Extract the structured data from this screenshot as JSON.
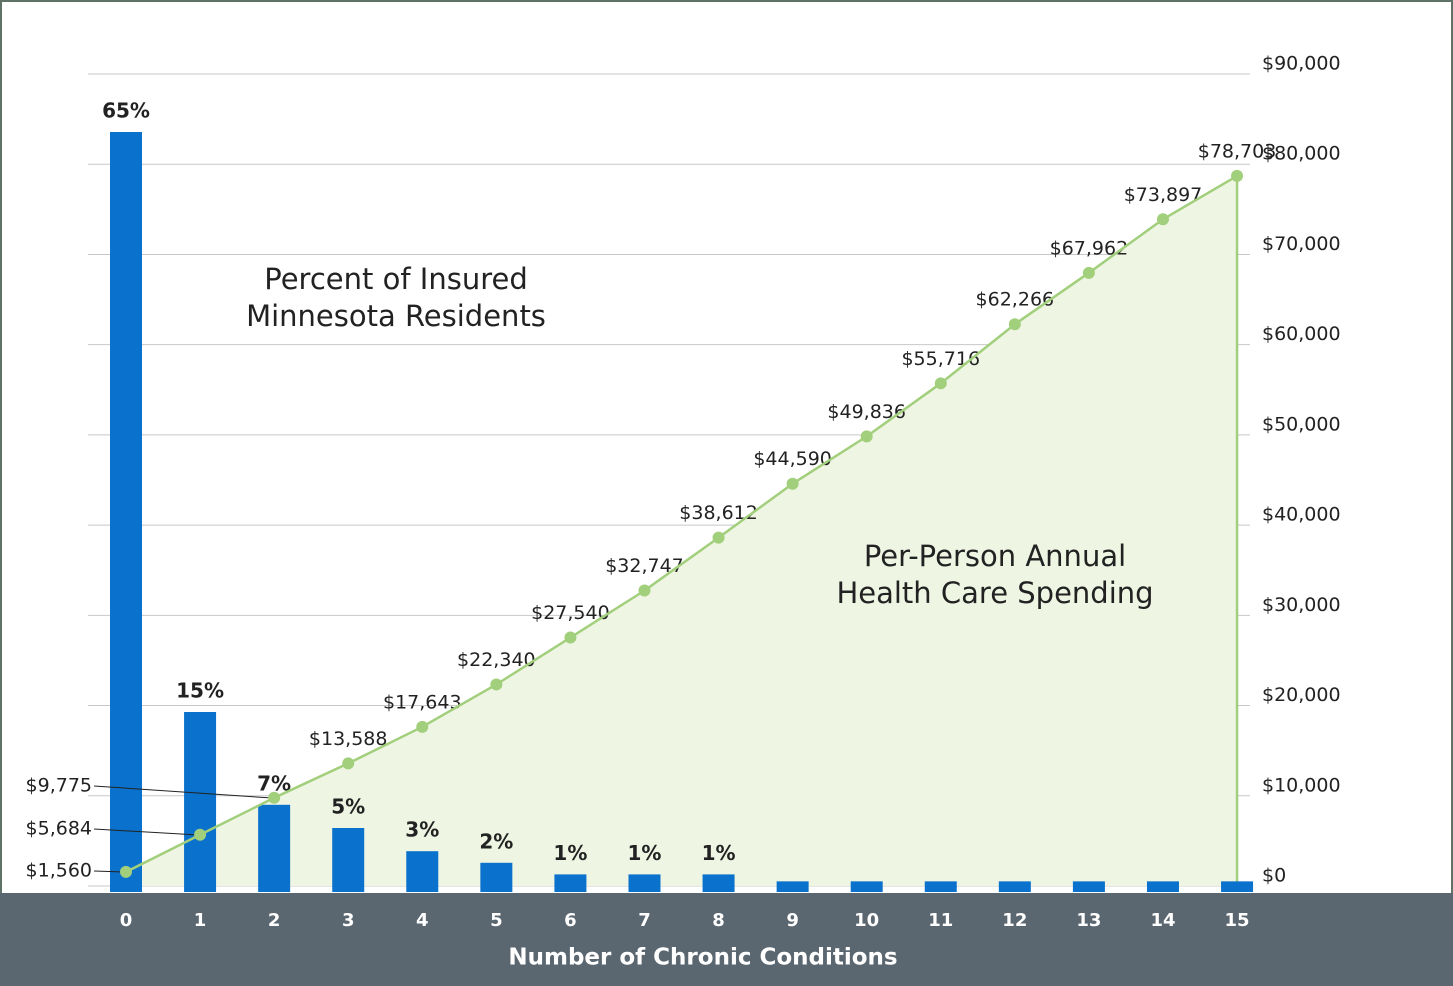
{
  "chart_data": {
    "type": "combo",
    "x_label": "Number of Chronic Conditions",
    "categories": [
      "0",
      "1",
      "2",
      "3",
      "4",
      "5",
      "6",
      "7",
      "8",
      "9",
      "10",
      "11",
      "12",
      "13",
      "14",
      "15"
    ],
    "ylim": [
      0,
      70
    ],
    "y2lim": [
      0,
      90000
    ],
    "y2ticks": [
      {
        "value": 0,
        "label": "$0"
      },
      {
        "value": 10000,
        "label": "$10,000"
      },
      {
        "value": 20000,
        "label": "$20,000"
      },
      {
        "value": 30000,
        "label": "$30,000"
      },
      {
        "value": 40000,
        "label": "$40,000"
      },
      {
        "value": 50000,
        "label": "$50,000"
      },
      {
        "value": 60000,
        "label": "$60,000"
      },
      {
        "value": 70000,
        "label": "$70,000"
      },
      {
        "value": 80000,
        "label": "$80,000"
      },
      {
        "value": 90000,
        "label": "$90,000"
      }
    ],
    "grid": true,
    "series": [
      {
        "name": [
          "Percent of Insured",
          "Minnesota Residents"
        ],
        "type": "bar",
        "color": "#0a72cc",
        "values": [
          65,
          15,
          7,
          5,
          3,
          2,
          1,
          1,
          1,
          0.4,
          0.4,
          0.4,
          0.4,
          0.4,
          0.4,
          0.4
        ],
        "value_labels": [
          "65%",
          "15%",
          "7%",
          "5%",
          "3%",
          "2%",
          "1%",
          "1%",
          "1%",
          null,
          null,
          null,
          null,
          null,
          null,
          null
        ]
      },
      {
        "name": [
          "Per-Person Annual",
          "Health Care Spending"
        ],
        "type": "line",
        "axis": "y2",
        "color": "#a2cf7c",
        "fill": "#eef5e3",
        "values": [
          1560,
          5684,
          9775,
          13588,
          17643,
          22340,
          27540,
          32747,
          38612,
          44590,
          49836,
          55716,
          62266,
          67962,
          73897,
          78703
        ],
        "value_labels": [
          "$1,560",
          "$5,684",
          "$9,775",
          "$13,588",
          "$17,643",
          "$22,340",
          "$27,540",
          "$32,747",
          "$38,612",
          "$44,590",
          "$49,836",
          "$55,716",
          "$62,266",
          "$67,962",
          "$73,897",
          "$78,703"
        ]
      }
    ]
  }
}
